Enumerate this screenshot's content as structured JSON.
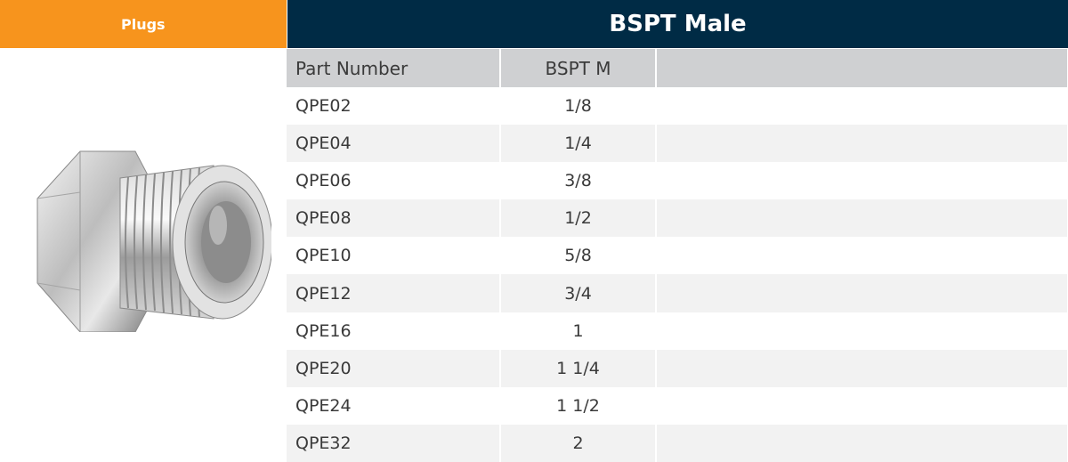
{
  "category": {
    "label": "Plugs"
  },
  "product_image": {
    "icon": "hex-plug-fitting-image"
  },
  "table": {
    "title": "BSPT Male",
    "headers": {
      "part_number": "Part Number",
      "size": "BSPT M",
      "extra": ""
    },
    "rows": [
      {
        "part_number": "QPE02",
        "size": "1/8"
      },
      {
        "part_number": "QPE04",
        "size": "1/4"
      },
      {
        "part_number": "QPE06",
        "size": "3/8"
      },
      {
        "part_number": "QPE08",
        "size": "1/2"
      },
      {
        "part_number": "QPE10",
        "size": "5/8"
      },
      {
        "part_number": "QPE12",
        "size": "3/4"
      },
      {
        "part_number": "QPE16",
        "size": "1"
      },
      {
        "part_number": "QPE20",
        "size": "1 1/4"
      },
      {
        "part_number": "QPE24",
        "size": "1 1/2"
      },
      {
        "part_number": "QPE32",
        "size": "2"
      }
    ]
  },
  "colors": {
    "category_tab": "#f7941d",
    "title_bar": "#002b45",
    "header_row": "#cfd0d2",
    "stripe_row": "#f2f2f2"
  }
}
